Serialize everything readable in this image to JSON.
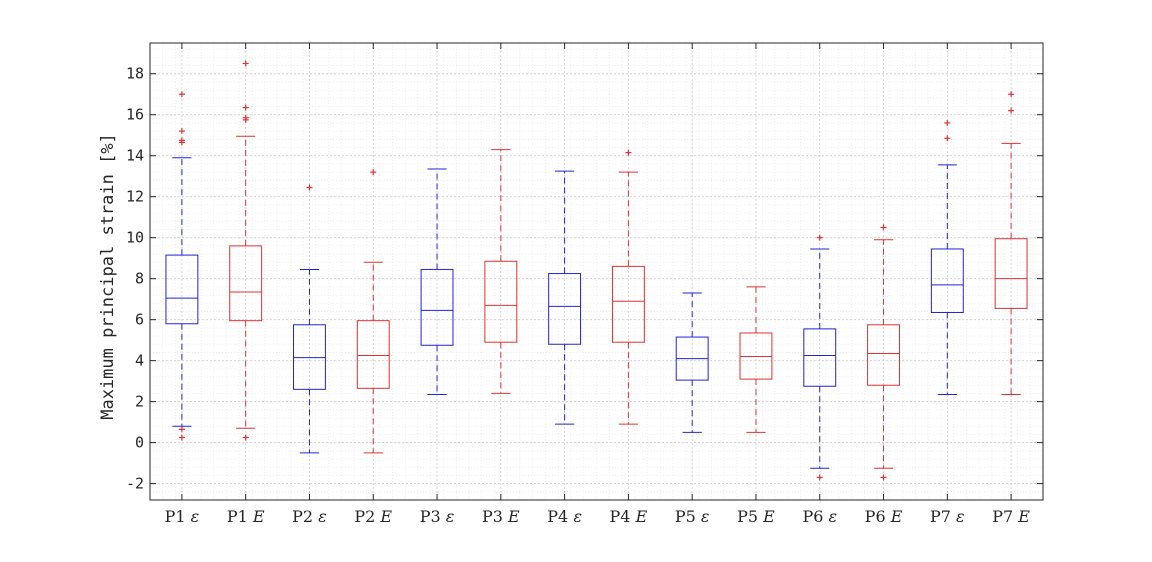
{
  "chart_data": {
    "type": "box",
    "title": "",
    "xlabel": "",
    "ylabel": "Maximum principal strain [%]",
    "ylim": [
      -2.8,
      19.5
    ],
    "yticks": [
      -2,
      0,
      2,
      4,
      6,
      8,
      10,
      12,
      14,
      16,
      18
    ],
    "grid": "on (major and minor)",
    "colors": {
      "epsilon": "#2323d8",
      "E": "#e03030"
    },
    "categories": [
      {
        "label": "P1 ε",
        "group": "epsilon",
        "lower_whisker": 0.8,
        "q1": 5.8,
        "median": 7.05,
        "q3": 9.15,
        "upper_whisker": 13.9,
        "outliers": [
          0.25,
          0.65,
          14.65,
          14.75,
          15.2,
          17.0
        ]
      },
      {
        "label": "P1 E",
        "group": "E",
        "lower_whisker": 0.7,
        "q1": 5.95,
        "median": 7.35,
        "q3": 9.6,
        "upper_whisker": 14.95,
        "outliers": [
          0.25,
          15.75,
          15.85,
          16.35,
          18.5
        ]
      },
      {
        "label": "P2 ε",
        "group": "epsilon",
        "lower_whisker": -0.5,
        "q1": 2.6,
        "median": 4.15,
        "q3": 5.75,
        "upper_whisker": 8.45,
        "outliers": [
          12.45
        ]
      },
      {
        "label": "P2 E",
        "group": "E",
        "lower_whisker": -0.5,
        "q1": 2.65,
        "median": 4.25,
        "q3": 5.95,
        "upper_whisker": 8.8,
        "outliers": [
          13.2
        ]
      },
      {
        "label": "P3 ε",
        "group": "epsilon",
        "lower_whisker": 2.35,
        "q1": 4.75,
        "median": 6.45,
        "q3": 8.45,
        "upper_whisker": 13.35,
        "outliers": []
      },
      {
        "label": "P3 E",
        "group": "E",
        "lower_whisker": 2.4,
        "q1": 4.9,
        "median": 6.7,
        "q3": 8.85,
        "upper_whisker": 14.3,
        "outliers": []
      },
      {
        "label": "P4 ε",
        "group": "epsilon",
        "lower_whisker": 0.9,
        "q1": 4.8,
        "median": 6.65,
        "q3": 8.25,
        "upper_whisker": 13.25,
        "outliers": []
      },
      {
        "label": "P4 E",
        "group": "E",
        "lower_whisker": 0.9,
        "q1": 4.9,
        "median": 6.9,
        "q3": 8.6,
        "upper_whisker": 13.2,
        "outliers": [
          14.15
        ]
      },
      {
        "label": "P5 ε",
        "group": "epsilon",
        "lower_whisker": 0.5,
        "q1": 3.05,
        "median": 4.1,
        "q3": 5.15,
        "upper_whisker": 7.3,
        "outliers": []
      },
      {
        "label": "P5 E",
        "group": "E",
        "lower_whisker": 0.5,
        "q1": 3.1,
        "median": 4.2,
        "q3": 5.35,
        "upper_whisker": 7.6,
        "outliers": []
      },
      {
        "label": "P6 ε",
        "group": "epsilon",
        "lower_whisker": -1.25,
        "q1": 2.75,
        "median": 4.25,
        "q3": 5.55,
        "upper_whisker": 9.45,
        "outliers": [
          -1.7,
          10.0
        ]
      },
      {
        "label": "P6 E",
        "group": "E",
        "lower_whisker": -1.25,
        "q1": 2.8,
        "median": 4.35,
        "q3": 5.75,
        "upper_whisker": 9.9,
        "outliers": [
          -1.7,
          10.5
        ]
      },
      {
        "label": "P7 ε",
        "group": "epsilon",
        "lower_whisker": 2.35,
        "q1": 6.35,
        "median": 7.7,
        "q3": 9.45,
        "upper_whisker": 13.55,
        "outliers": [
          14.85,
          15.6
        ]
      },
      {
        "label": "P7 E",
        "group": "E",
        "lower_whisker": 2.35,
        "q1": 6.55,
        "median": 8.0,
        "q3": 9.95,
        "upper_whisker": 14.6,
        "outliers": [
          16.2,
          17.0
        ]
      }
    ]
  }
}
